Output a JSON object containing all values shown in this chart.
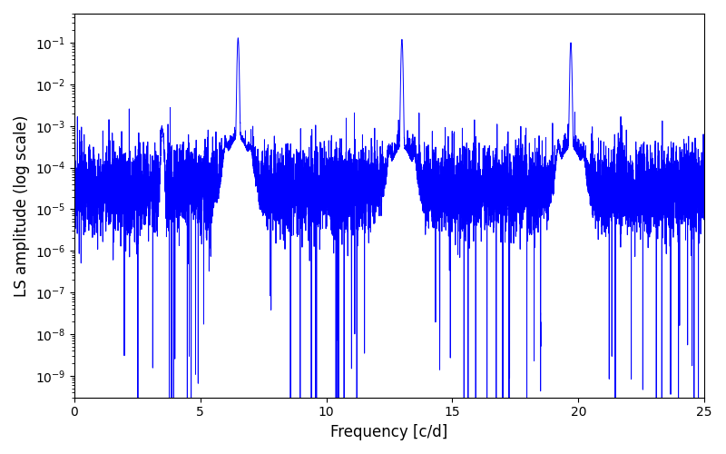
{
  "title": "",
  "xlabel": "Frequency [c/d]",
  "ylabel": "LS amplitude (log scale)",
  "line_color": "#0000ff",
  "line_width": 0.7,
  "xlim": [
    0,
    25
  ],
  "ylim_low": 3e-10,
  "ylim_high": 0.5,
  "figsize": [
    8.0,
    5.0
  ],
  "dpi": 100,
  "freq_min": 0.0,
  "freq_max": 25.0,
  "n_points": 8000,
  "peak1_freq": 6.5,
  "peak1_amp": 0.13,
  "peak2_freq": 13.0,
  "peak2_amp": 0.12,
  "peak3_freq": 19.7,
  "peak3_amp": 0.1,
  "base_level": 3e-05,
  "noise_sigma": 1.2,
  "noise_seed": 17
}
